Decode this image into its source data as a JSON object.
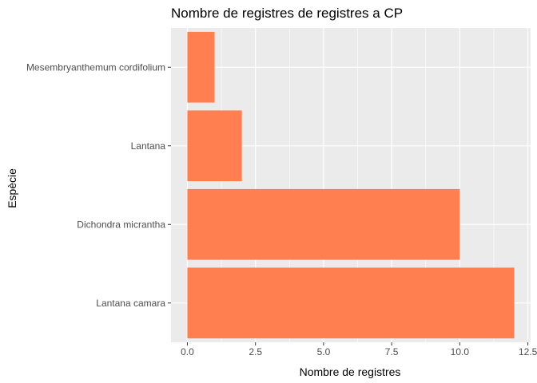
{
  "chart_data": {
    "type": "bar",
    "orientation": "horizontal",
    "title": "Nombre de registres de registres a CP",
    "xlabel": "Nombre de registres",
    "ylabel": "Espècie",
    "categories": [
      "Lantana camara",
      "Dichondra micrantha",
      "Lantana",
      "Mesembryanthemum cordifolium"
    ],
    "values": [
      12,
      10,
      2,
      1
    ],
    "xlim": [
      -0.6,
      12.6
    ],
    "xticks": [
      0,
      2.5,
      5,
      7.5,
      10,
      12.5
    ],
    "xtick_labels": [
      "0.0",
      "2.5",
      "5.0",
      "7.5",
      "10.0",
      "12.5"
    ],
    "grid": true,
    "bar_color": "#FF7F50",
    "panel_background": "#EBEBEB",
    "grid_color": "#FFFFFF"
  }
}
